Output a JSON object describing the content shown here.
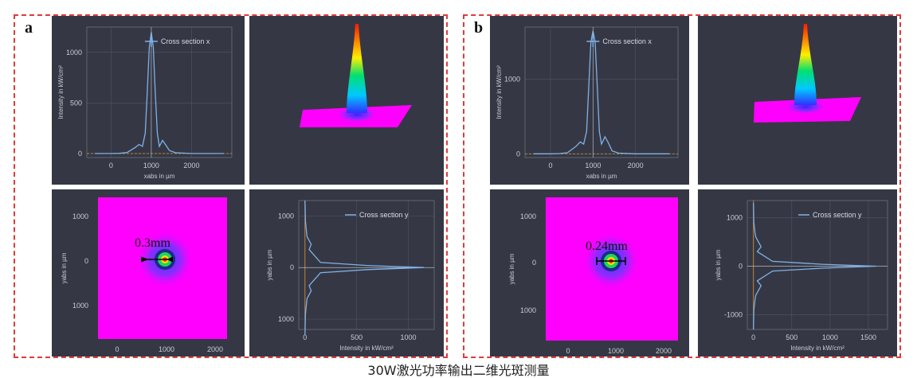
{
  "caption": "30W激光功率输出二维光斑测量",
  "colors": {
    "background": "#353844",
    "curve": "#7fb1e8",
    "zero_line": "#d08a3a",
    "flat": "#ff00ff"
  },
  "panels": [
    {
      "letter": "a",
      "cross_x": {
        "legend": "Cross section x",
        "ylabel": "Intensity in kW/cm²",
        "xlabel": "xabs in µm",
        "xticks": [
          "0",
          "1000",
          "2000"
        ],
        "yticks": [
          "0",
          "500",
          "1000"
        ],
        "chart_data": {
          "type": "line",
          "x": [
            -400,
            0,
            200,
            400,
            600,
            700,
            780,
            850,
            900,
            950,
            1000,
            1050,
            1100,
            1150,
            1200,
            1280,
            1350,
            1450,
            1600,
            2000,
            2800
          ],
          "y": [
            0,
            0,
            2,
            10,
            60,
            90,
            70,
            200,
            600,
            1050,
            1200,
            1050,
            600,
            200,
            70,
            130,
            90,
            30,
            8,
            0,
            0
          ],
          "xlim": [
            -600,
            3000
          ],
          "ylim": [
            -40,
            1250
          ]
        }
      },
      "cross_y": {
        "legend": "Cross section y",
        "ylabel": "yabs in µm",
        "xlabel": "Intensity in kW/cm²",
        "xticks": [
          "0",
          "500",
          "1000"
        ],
        "yticks": [
          "1000",
          "0",
          "1000"
        ],
        "chart_data": {
          "type": "line",
          "x": [
            0,
            5,
            15,
            20,
            60,
            40,
            150,
            600,
            1150,
            600,
            150,
            40,
            60,
            20,
            15,
            5,
            0
          ],
          "y": [
            1300,
            900,
            700,
            600,
            450,
            350,
            100,
            40,
            0,
            -40,
            -100,
            -350,
            -450,
            -600,
            -700,
            -900,
            -1300
          ],
          "xlim": [
            -60,
            1250
          ],
          "ylim": [
            -1200,
            1300
          ]
        }
      },
      "map": {
        "xticks": [
          "0",
          "1000",
          "2000"
        ],
        "yticks": [
          "1000",
          "0",
          "1000"
        ],
        "ylabel": "yabs in µm",
        "xlabel": "xabs in µm",
        "annotation": "0.3mm"
      }
    },
    {
      "letter": "b",
      "cross_x": {
        "legend": "Cross section x",
        "ylabel": "Intensity in kW/cm²",
        "xlabel": "xabs in µm",
        "xticks": [
          "0",
          "1000",
          "2000"
        ],
        "yticks": [
          "0",
          "1000"
        ],
        "chart_data": {
          "type": "line",
          "x": [
            -400,
            0,
            200,
            400,
            600,
            700,
            780,
            850,
            900,
            950,
            1000,
            1050,
            1100,
            1150,
            1200,
            1280,
            1350,
            1450,
            1600,
            2000,
            2800
          ],
          "y": [
            0,
            0,
            3,
            15,
            100,
            160,
            130,
            300,
            900,
            1500,
            1650,
            1500,
            900,
            300,
            130,
            230,
            160,
            40,
            10,
            0,
            0
          ],
          "xlim": [
            -600,
            3000
          ],
          "ylim": [
            -50,
            1700
          ]
        }
      },
      "cross_y": {
        "legend": "Cross section y",
        "ylabel": "yabs in µm",
        "xlabel": "Intensity in kW/cm²",
        "xticks": [
          "0",
          "500",
          "1000",
          "1500"
        ],
        "yticks": [
          "1000",
          "0",
          "-1000"
        ],
        "chart_data": {
          "type": "line",
          "x": [
            0,
            5,
            20,
            30,
            100,
            50,
            250,
            900,
            1600,
            900,
            250,
            50,
            100,
            30,
            20,
            5,
            0
          ],
          "y": [
            1300,
            900,
            700,
            600,
            400,
            300,
            100,
            40,
            0,
            -40,
            -100,
            -300,
            -400,
            -600,
            -700,
            -900,
            -1300
          ],
          "xlim": [
            -80,
            1750
          ],
          "ylim": [
            -1300,
            1350
          ]
        }
      },
      "map": {
        "xticks": [
          "0",
          "1000",
          "2000"
        ],
        "yticks": [
          "1000",
          "0",
          "1000"
        ],
        "ylabel": "yabs in µm",
        "xlabel": "xabs in µm",
        "annotation": "0.24mm"
      }
    }
  ]
}
